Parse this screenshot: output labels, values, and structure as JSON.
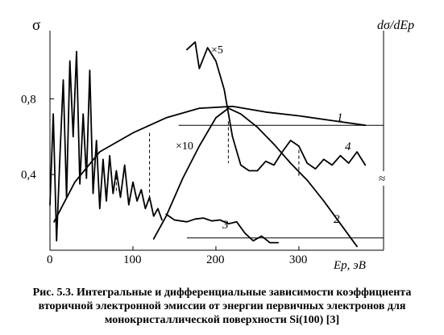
{
  "chart_data": {
    "type": "line",
    "ylabel_left": "σ",
    "ylabel_right": "dσ/dEp",
    "xlabel": "Ep, эВ",
    "x_ticks": [
      "0",
      "100",
      "200",
      "300"
    ],
    "y_ticks": [
      "0,4",
      "0,8"
    ],
    "xlim": [
      0,
      390
    ],
    "ylim": [
      0,
      1.16
    ],
    "right_break_mark": "≈",
    "magnification_labels": [
      "×5",
      "×10"
    ],
    "series": [
      {
        "name": "1",
        "x": [
          5,
          30,
          60,
          100,
          140,
          180,
          220,
          260,
          300,
          340,
          380
        ],
        "y": [
          0.15,
          0.36,
          0.52,
          0.62,
          0.7,
          0.75,
          0.76,
          0.73,
          0.71,
          0.685,
          0.66
        ]
      },
      {
        "name": "2",
        "x": [
          125,
          140,
          160,
          180,
          200,
          215,
          230,
          250,
          270,
          290,
          310,
          330,
          350,
          370
        ],
        "y": [
          0.06,
          0.18,
          0.38,
          0.55,
          0.7,
          0.75,
          0.72,
          0.65,
          0.56,
          0.46,
          0.37,
          0.26,
          0.14,
          0.02
        ]
      },
      {
        "name": "3",
        "x": [
          140,
          150,
          165,
          175,
          185,
          195,
          205,
          215,
          225,
          235,
          245,
          255,
          265,
          275
        ],
        "y": [
          0.19,
          0.16,
          0.15,
          0.165,
          0.17,
          0.155,
          0.16,
          0.14,
          0.15,
          0.09,
          0.05,
          0.075,
          0.04,
          0.04
        ]
      },
      {
        "name": "4",
        "x": [
          165,
          175,
          180,
          190,
          200,
          210,
          220,
          230,
          240,
          250,
          260,
          270,
          280,
          290,
          300,
          310,
          320,
          330,
          340,
          350,
          360,
          370,
          380
        ],
        "y": [
          1.06,
          1.1,
          0.96,
          1.07,
          1.0,
          0.85,
          0.6,
          0.45,
          0.42,
          0.42,
          0.47,
          0.45,
          0.52,
          0.58,
          0.55,
          0.46,
          0.43,
          0.48,
          0.45,
          0.5,
          0.46,
          0.52,
          0.45
        ]
      },
      {
        "name": "",
        "x": [
          0,
          4,
          8,
          12,
          16,
          20,
          24,
          28,
          32,
          36,
          40,
          44,
          48,
          52,
          56,
          60,
          64,
          68,
          72,
          76,
          80,
          85,
          90,
          95,
          100,
          105,
          110,
          115,
          120,
          125,
          130,
          135
        ],
        "y": [
          0.24,
          0.72,
          0.05,
          0.5,
          0.9,
          0.28,
          1.0,
          0.6,
          1.05,
          0.35,
          0.72,
          0.38,
          0.95,
          0.3,
          0.58,
          0.22,
          0.48,
          0.26,
          0.5,
          0.3,
          0.42,
          0.28,
          0.45,
          0.24,
          0.36,
          0.26,
          0.32,
          0.22,
          0.28,
          0.18,
          0.22,
          0.16
        ]
      }
    ],
    "horizontal_refs": [
      0.66,
      0.065
    ],
    "dashed_markers_x": [
      80,
      120,
      215,
      300
    ],
    "title": "",
    "caption": "Рис. 5.3. Интегральные и дифференциальные зависимости коэффициента вторичной электронной эмиссии от энергии первичных электронов для монокристаллической поверхности Si(100) [3]"
  }
}
